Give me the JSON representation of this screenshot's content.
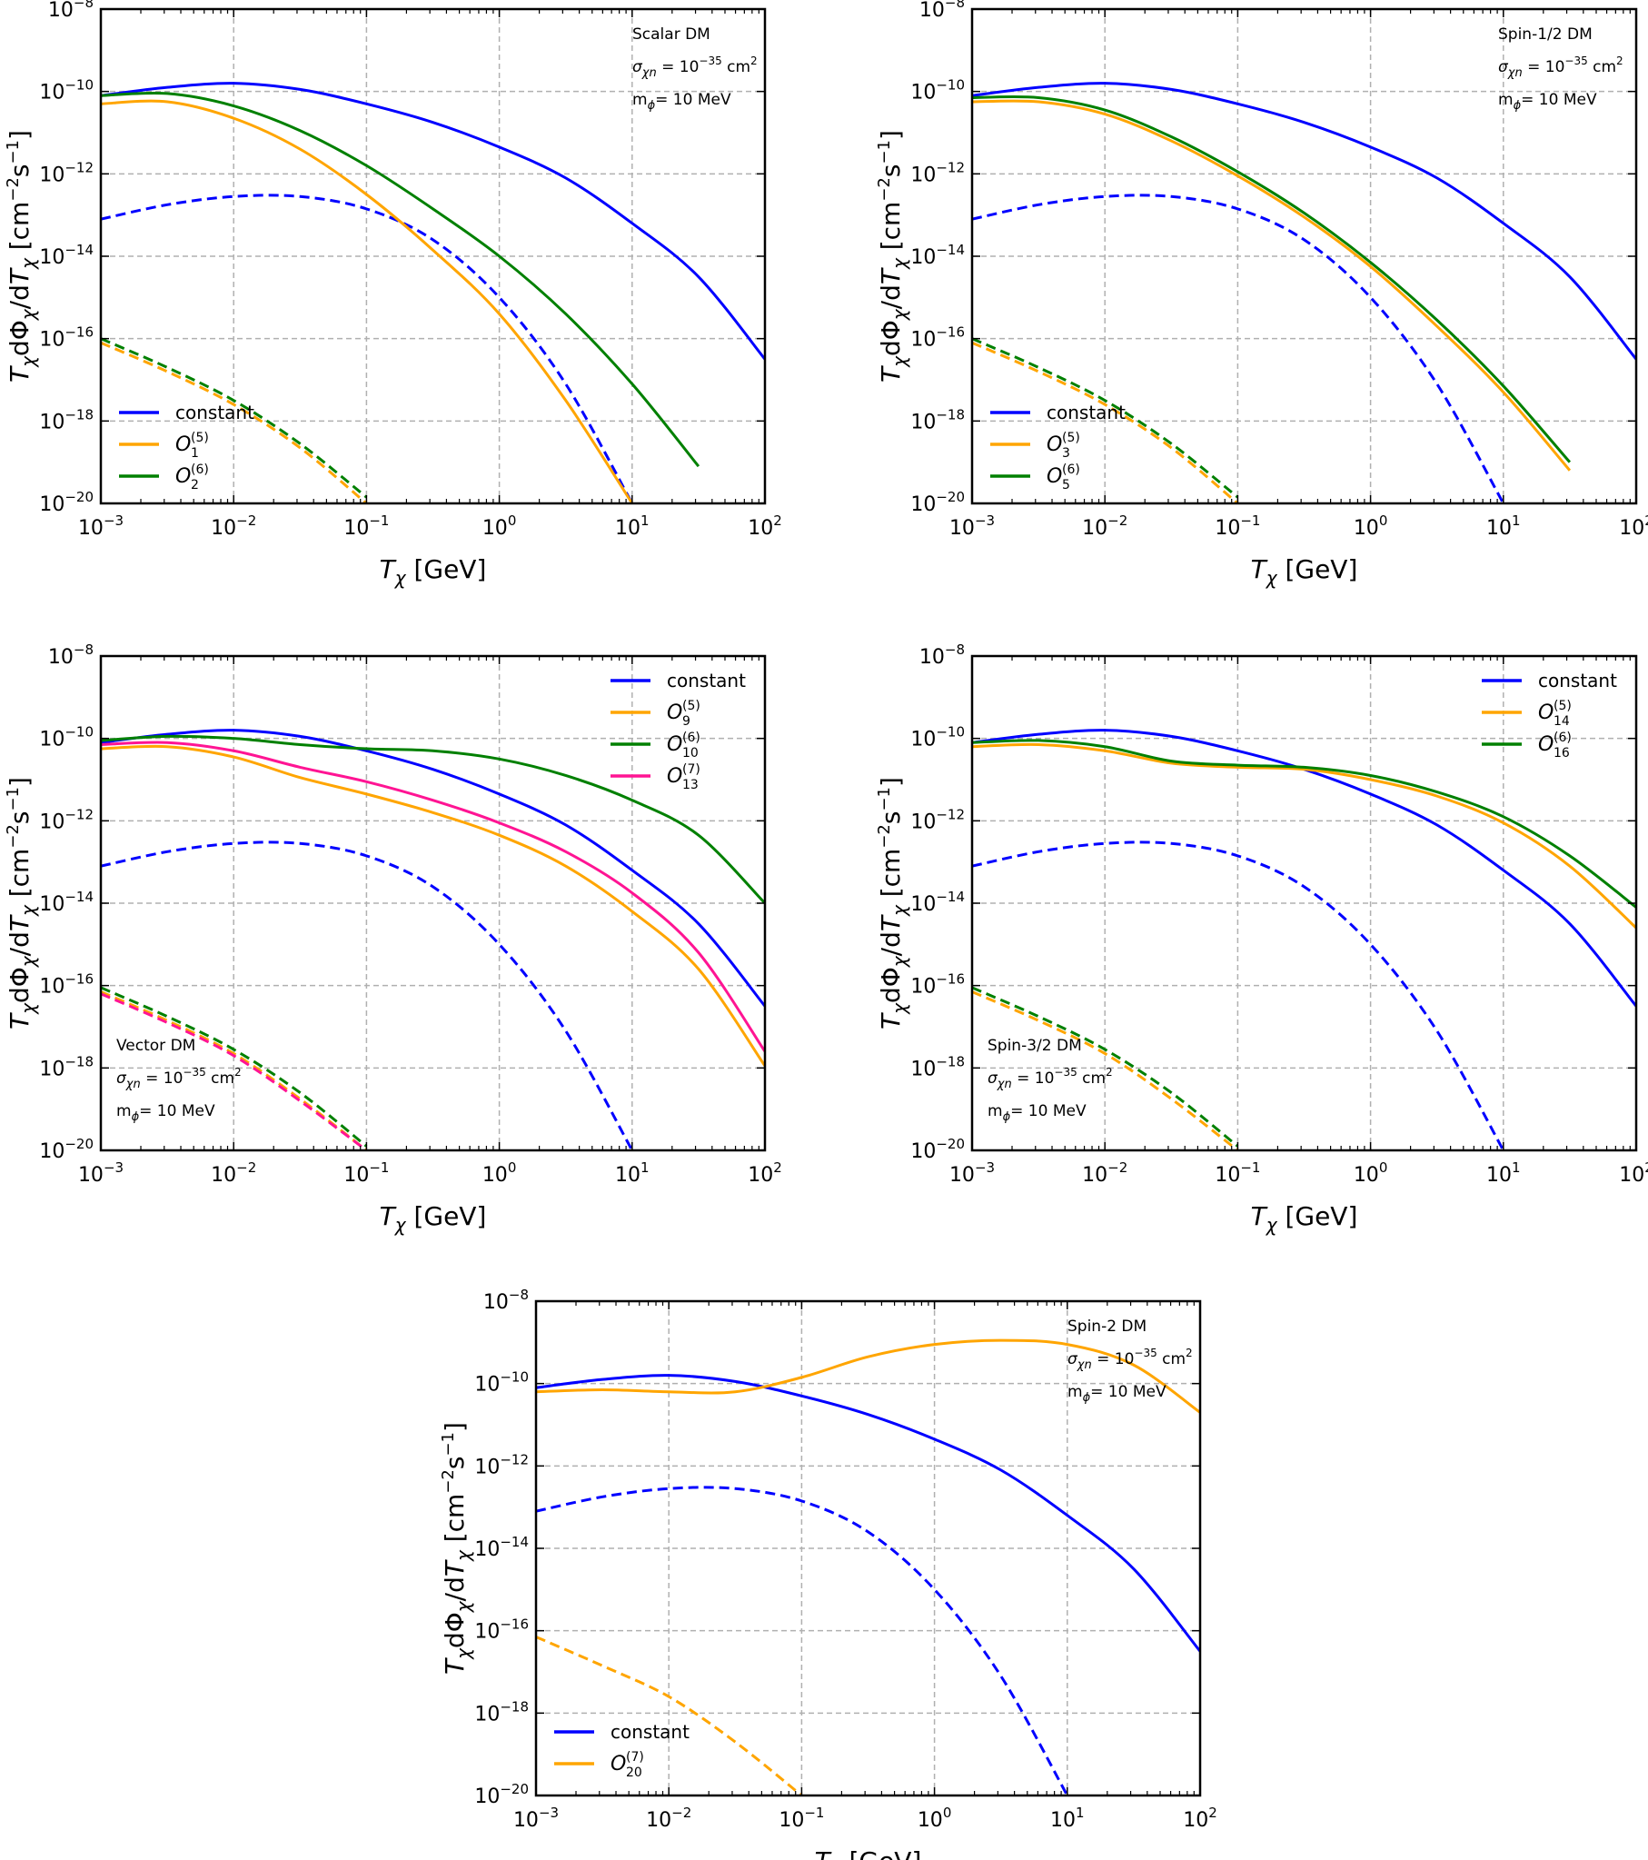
{
  "figure": {
    "common": {
      "xlabel": "T_χ [GeV]",
      "ylabel": "T_χdΦ_χ/dT_χ [cm⁻²s⁻¹]",
      "x_ticks": [
        "10^-3",
        "10^-2",
        "10^-1",
        "10^0",
        "10^1",
        "10^2"
      ],
      "y_ticks": [
        "10^-20",
        "10^-18",
        "10^-16",
        "10^-14",
        "10^-12",
        "10^-10",
        "10^-8"
      ],
      "colors": {
        "blue": "#0000ff",
        "orange": "#ffa500",
        "green": "#008000",
        "pink": "#ff1493",
        "grid": "#b0b0b0"
      }
    }
  },
  "chart_data": [
    {
      "type": "line",
      "panel": "top-left",
      "title": "",
      "xlabel": "T_χ [GeV]",
      "ylabel": "T_χdΦ_χ/dT_χ [cm⁻²s⁻¹]",
      "xscale": "log",
      "yscale": "log",
      "xlim": [
        0.001,
        100
      ],
      "ylim": [
        1e-20,
        1e-08
      ],
      "grid": true,
      "legend_position": "lower-left",
      "annotation": {
        "line1": "Scalar DM",
        "line2_symbol": "σ",
        "line2_sub": "χn",
        "line2_text": " = 10",
        "line2_exp": "−35",
        "line2_unit": " cm",
        "line2_unit_exp": "2",
        "line3_m": "m",
        "line3_sub": "ϕ",
        "line3_text": "= 10 MeV",
        "position": "top-right"
      },
      "log10_x": [
        -3,
        -2.5,
        -2,
        -1.5,
        -1,
        -0.5,
        0,
        0.5,
        1,
        1.5,
        2
      ],
      "series": [
        {
          "name": "constant",
          "label_main": "constant",
          "label_sub": "",
          "label_sup": "",
          "color": "#0000ff",
          "style": "solid",
          "log10_y": [
            -10.1,
            -9.9,
            -9.8,
            -9.95,
            -10.3,
            -10.75,
            -11.35,
            -12.1,
            -13.2,
            -14.5,
            -16.5
          ]
        },
        {
          "name": "constant (dashed)",
          "legend": false,
          "color": "#0000ff",
          "style": "dashed",
          "log10_y": [
            -13.1,
            -12.75,
            -12.55,
            -12.55,
            -12.85,
            -13.6,
            -15.0,
            -17.1,
            -20.0,
            null,
            null
          ]
        },
        {
          "name": "O_1^(5)",
          "label_main": "O",
          "label_sub": "1",
          "label_sup": "(5)",
          "color": "#ffa500",
          "style": "solid",
          "log10_y": [
            -10.3,
            -10.25,
            -10.65,
            -11.4,
            -12.5,
            -13.85,
            -15.4,
            -17.5,
            -20.0,
            null,
            null
          ]
        },
        {
          "name": "O_1^(5) (dashed)",
          "legend": false,
          "color": "#ffa500",
          "style": "dashed",
          "log10_y": [
            -16.1,
            -16.8,
            -17.6,
            -18.65,
            -20.0,
            null,
            null,
            null,
            null,
            null,
            null
          ]
        },
        {
          "name": "O_2^(6)",
          "label_main": "O",
          "label_sub": "2",
          "label_sup": "(6)",
          "color": "#008000",
          "style": "solid",
          "log10_y": [
            -10.1,
            -10.05,
            -10.35,
            -10.95,
            -11.8,
            -12.85,
            -14.0,
            -15.4,
            -17.1,
            -19.1,
            null
          ]
        },
        {
          "name": "O_2^(6) (dashed)",
          "legend": false,
          "color": "#008000",
          "style": "dashed",
          "log10_y": [
            -16.0,
            -16.7,
            -17.5,
            -18.55,
            -19.85,
            null,
            null,
            null,
            null,
            null,
            null
          ]
        }
      ]
    },
    {
      "type": "line",
      "panel": "top-right",
      "title": "",
      "xlabel": "T_χ [GeV]",
      "ylabel": "T_χdΦ_χ/dT_χ [cm⁻²s⁻¹]",
      "xscale": "log",
      "yscale": "log",
      "xlim": [
        0.001,
        100
      ],
      "ylim": [
        1e-20,
        1e-08
      ],
      "grid": true,
      "legend_position": "lower-left",
      "annotation": {
        "line1": "Spin-1/2 DM",
        "line2_symbol": "σ",
        "line2_sub": "χn",
        "line2_text": " = 10",
        "line2_exp": "−35",
        "line2_unit": " cm",
        "line2_unit_exp": "2",
        "line3_m": "m",
        "line3_sub": "ϕ",
        "line3_text": "= 10 MeV",
        "position": "top-right"
      },
      "log10_x": [
        -3,
        -2.5,
        -2,
        -1.5,
        -1,
        -0.5,
        0,
        0.5,
        1,
        1.5,
        2
      ],
      "series": [
        {
          "name": "constant",
          "label_main": "constant",
          "label_sub": "",
          "label_sup": "",
          "color": "#0000ff",
          "style": "solid",
          "log10_y": [
            -10.1,
            -9.9,
            -9.8,
            -9.95,
            -10.3,
            -10.75,
            -11.35,
            -12.1,
            -13.2,
            -14.5,
            -16.5
          ]
        },
        {
          "name": "constant (dashed)",
          "legend": false,
          "color": "#0000ff",
          "style": "dashed",
          "log10_y": [
            -13.1,
            -12.75,
            -12.55,
            -12.55,
            -12.85,
            -13.6,
            -15.0,
            -17.1,
            -20.0,
            null,
            null
          ]
        },
        {
          "name": "O_3^(5)",
          "label_main": "O",
          "label_sub": "3",
          "label_sup": "(5)",
          "color": "#ffa500",
          "style": "solid",
          "log10_y": [
            -10.25,
            -10.25,
            -10.55,
            -11.2,
            -12.05,
            -13.05,
            -14.25,
            -15.7,
            -17.3,
            -19.2,
            null
          ]
        },
        {
          "name": "O_3^(5) (dashed)",
          "legend": false,
          "color": "#ffa500",
          "style": "dashed",
          "log10_y": [
            -16.1,
            -16.8,
            -17.6,
            -18.65,
            -20.0,
            null,
            null,
            null,
            null,
            null,
            null
          ]
        },
        {
          "name": "O_5^(6)",
          "label_main": "O",
          "label_sub": "5",
          "label_sup": "(6)",
          "color": "#008000",
          "style": "solid",
          "log10_y": [
            -10.15,
            -10.15,
            -10.45,
            -11.1,
            -11.95,
            -12.95,
            -14.15,
            -15.55,
            -17.15,
            -19.0,
            null
          ]
        },
        {
          "name": "O_5^(6) (dashed)",
          "legend": false,
          "color": "#008000",
          "style": "dashed",
          "log10_y": [
            -16.0,
            -16.7,
            -17.5,
            -18.55,
            -19.85,
            null,
            null,
            null,
            null,
            null,
            null
          ]
        }
      ]
    },
    {
      "type": "line",
      "panel": "middle-left",
      "title": "",
      "xlabel": "T_χ [GeV]",
      "ylabel": "T_χdΦ_χ/dT_χ [cm⁻²s⁻¹]",
      "xscale": "log",
      "yscale": "log",
      "xlim": [
        0.001,
        100
      ],
      "ylim": [
        1e-20,
        1e-08
      ],
      "grid": true,
      "legend_position": "top-right",
      "annotation": {
        "line1": "Vector DM",
        "line2_symbol": "σ",
        "line2_sub": "χn",
        "line2_text": " = 10",
        "line2_exp": "−35",
        "line2_unit": " cm",
        "line2_unit_exp": "2",
        "line3_m": "m",
        "line3_sub": "ϕ",
        "line3_text": "= 10 MeV",
        "position": "bottom-left"
      },
      "log10_x": [
        -3,
        -2.5,
        -2,
        -1.5,
        -1,
        -0.5,
        0,
        0.5,
        1,
        1.5,
        2
      ],
      "series": [
        {
          "name": "constant",
          "label_main": "constant",
          "label_sub": "",
          "label_sup": "",
          "color": "#0000ff",
          "style": "solid",
          "log10_y": [
            -10.1,
            -9.9,
            -9.8,
            -9.95,
            -10.3,
            -10.75,
            -11.35,
            -12.1,
            -13.2,
            -14.5,
            -16.5
          ]
        },
        {
          "name": "constant (dashed)",
          "legend": false,
          "color": "#0000ff",
          "style": "dashed",
          "log10_y": [
            -13.1,
            -12.75,
            -12.55,
            -12.55,
            -12.85,
            -13.6,
            -15.0,
            -17.1,
            -20.0,
            null,
            null
          ]
        },
        {
          "name": "O_9^(5)",
          "label_main": "O",
          "label_sub": "9",
          "label_sup": "(5)",
          "color": "#ffa500",
          "style": "solid",
          "log10_y": [
            -10.25,
            -10.2,
            -10.45,
            -10.95,
            -11.35,
            -11.8,
            -12.35,
            -13.1,
            -14.2,
            -15.6,
            -17.95
          ]
        },
        {
          "name": "O_9^(5) (dashed)",
          "legend": false,
          "color": "#ffa500",
          "style": "dashed",
          "log10_y": [
            -16.15,
            -16.85,
            -17.65,
            -18.75,
            -20.0,
            null,
            null,
            null,
            null,
            null,
            null
          ]
        },
        {
          "name": "O_10^(6)",
          "label_main": "O",
          "label_sub": "10",
          "label_sup": "(6)",
          "color": "#008000",
          "style": "solid",
          "log10_y": [
            -10.05,
            -9.95,
            -10.0,
            -10.15,
            -10.25,
            -10.3,
            -10.5,
            -10.9,
            -11.5,
            -12.35,
            -14.0
          ]
        },
        {
          "name": "O_10^(6) (dashed)",
          "legend": false,
          "color": "#008000",
          "style": "dashed",
          "log10_y": [
            -16.05,
            -16.75,
            -17.55,
            -18.6,
            -19.9,
            null,
            null,
            null,
            null,
            null,
            null
          ]
        },
        {
          "name": "O_13^(7)",
          "label_main": "O",
          "label_sub": "13",
          "label_sup": "(7)",
          "color": "#ff1493",
          "style": "solid",
          "log10_y": [
            -10.15,
            -10.1,
            -10.3,
            -10.7,
            -11.05,
            -11.5,
            -12.05,
            -12.75,
            -13.75,
            -15.2,
            -17.6
          ]
        },
        {
          "name": "O_13^(7) (dashed)",
          "legend": false,
          "color": "#ff1493",
          "style": "dashed",
          "log10_y": [
            -16.2,
            -16.9,
            -17.7,
            -18.8,
            -20.0,
            null,
            null,
            null,
            null,
            null,
            null
          ]
        }
      ]
    },
    {
      "type": "line",
      "panel": "middle-right",
      "title": "",
      "xlabel": "T_χ [GeV]",
      "ylabel": "T_χdΦ_χ/dT_χ [cm⁻²s⁻¹]",
      "xscale": "log",
      "yscale": "log",
      "xlim": [
        0.001,
        100
      ],
      "ylim": [
        1e-20,
        1e-08
      ],
      "grid": true,
      "legend_position": "top-right",
      "annotation": {
        "line1": "Spin-3/2 DM",
        "line2_symbol": "σ",
        "line2_sub": "χn",
        "line2_text": " = 10",
        "line2_exp": "−35",
        "line2_unit": " cm",
        "line2_unit_exp": "2",
        "line3_m": "m",
        "line3_sub": "ϕ",
        "line3_text": "= 10 MeV",
        "position": "bottom-left"
      },
      "log10_x": [
        -3,
        -2.5,
        -2,
        -1.5,
        -1,
        -0.5,
        0,
        0.5,
        1,
        1.5,
        2
      ],
      "series": [
        {
          "name": "constant",
          "label_main": "constant",
          "label_sub": "",
          "label_sup": "",
          "color": "#0000ff",
          "style": "solid",
          "log10_y": [
            -10.1,
            -9.9,
            -9.8,
            -9.95,
            -10.3,
            -10.75,
            -11.35,
            -12.1,
            -13.2,
            -14.5,
            -16.5
          ]
        },
        {
          "name": "constant (dashed)",
          "legend": false,
          "color": "#0000ff",
          "style": "dashed",
          "log10_y": [
            -13.1,
            -12.75,
            -12.55,
            -12.55,
            -12.85,
            -13.6,
            -15.0,
            -17.1,
            -20.0,
            null,
            null
          ]
        },
        {
          "name": "O_14^(5)",
          "label_main": "O",
          "label_sub": "14",
          "label_sup": "(5)",
          "color": "#ffa500",
          "style": "solid",
          "log10_y": [
            -10.2,
            -10.15,
            -10.3,
            -10.6,
            -10.7,
            -10.75,
            -11.0,
            -11.4,
            -12.05,
            -13.1,
            -14.6
          ]
        },
        {
          "name": "O_14^(5) (dashed)",
          "legend": false,
          "color": "#ffa500",
          "style": "dashed",
          "log10_y": [
            -16.15,
            -16.85,
            -17.65,
            -18.75,
            -20.0,
            null,
            null,
            null,
            null,
            null,
            null
          ]
        },
        {
          "name": "O_16^(6)",
          "label_main": "O",
          "label_sub": "16",
          "label_sup": "(6)",
          "color": "#008000",
          "style": "solid",
          "log10_y": [
            -10.1,
            -10.05,
            -10.2,
            -10.55,
            -10.65,
            -10.7,
            -10.9,
            -11.3,
            -11.9,
            -12.85,
            -14.1
          ]
        },
        {
          "name": "O_16^(6) (dashed)",
          "legend": false,
          "color": "#008000",
          "style": "dashed",
          "log10_y": [
            -16.05,
            -16.75,
            -17.55,
            -18.6,
            -19.9,
            null,
            null,
            null,
            null,
            null,
            null
          ]
        }
      ]
    },
    {
      "type": "line",
      "panel": "bottom-center",
      "title": "",
      "xlabel": "T_χ [GeV]",
      "ylabel": "T_χdΦ_χ/dT_χ [cm⁻²s⁻¹]",
      "xscale": "log",
      "yscale": "log",
      "xlim": [
        0.001,
        100
      ],
      "ylim": [
        1e-20,
        1e-08
      ],
      "grid": true,
      "legend_position": "lower-left",
      "annotation": {
        "line1": "Spin-2 DM",
        "line2_symbol": "σ",
        "line2_sub": "χn",
        "line2_text": " = 10",
        "line2_exp": "−35",
        "line2_unit": " cm",
        "line2_unit_exp": "2",
        "line3_m": "m",
        "line3_sub": "ϕ",
        "line3_text": "= 10 MeV",
        "position": "top-right"
      },
      "log10_x": [
        -3,
        -2.5,
        -2,
        -1.5,
        -1,
        -0.5,
        0,
        0.5,
        1,
        1.5,
        2
      ],
      "series": [
        {
          "name": "constant",
          "label_main": "constant",
          "label_sub": "",
          "label_sup": "",
          "color": "#0000ff",
          "style": "solid",
          "log10_y": [
            -10.1,
            -9.9,
            -9.8,
            -9.95,
            -10.3,
            -10.75,
            -11.35,
            -12.1,
            -13.2,
            -14.5,
            -16.5
          ]
        },
        {
          "name": "constant (dashed)",
          "legend": false,
          "color": "#0000ff",
          "style": "dashed",
          "log10_y": [
            -13.1,
            -12.75,
            -12.55,
            -12.55,
            -12.85,
            -13.6,
            -15.0,
            -17.1,
            -20.0,
            null,
            null
          ]
        },
        {
          "name": "O_20^(7)",
          "label_main": "O",
          "label_sub": "20",
          "label_sup": "(7)",
          "color": "#ffa500",
          "style": "solid",
          "log10_y": [
            -10.2,
            -10.15,
            -10.2,
            -10.2,
            -9.85,
            -9.35,
            -9.05,
            -8.95,
            -9.05,
            -9.55,
            -10.7
          ]
        },
        {
          "name": "O_20^(7) (dashed)",
          "legend": false,
          "color": "#ffa500",
          "style": "dashed",
          "log10_y": [
            -16.15,
            -16.85,
            -17.6,
            -18.7,
            -20.0,
            null,
            null,
            null,
            null,
            null,
            null
          ]
        }
      ]
    }
  ]
}
